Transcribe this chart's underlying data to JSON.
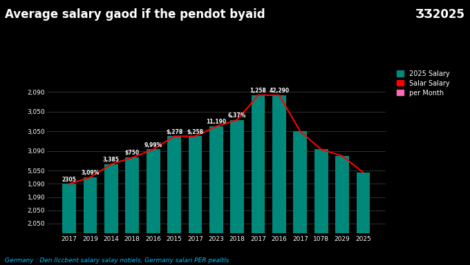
{
  "title_left": "Average salary gaod if the pendot byaid",
  "title_right": "ƷƷ2025",
  "categories": [
    "2017",
    "2019",
    "2014",
    "2018",
    "2016",
    "2015",
    "2017",
    "2023",
    "2018",
    "2017",
    "2016",
    "2017",
    "1078",
    "2029",
    "2025"
  ],
  "bar_values": [
    1.5,
    1.7,
    2.1,
    2.3,
    2.55,
    2.95,
    2.95,
    3.25,
    3.45,
    4.2,
    4.2,
    3.1,
    2.55,
    2.35,
    1.85
  ],
  "bar_labels": [
    "2305",
    "3,09%",
    "3,385",
    "$750",
    "9,99%",
    "$,278",
    "$,258",
    "11,190",
    "6,37%",
    "1,258",
    "42,290",
    "",
    "",
    "",
    ""
  ],
  "bar_color": "#00897B",
  "line_color": "#FF0000",
  "background_color": "#000000",
  "text_color": "#FFFFFF",
  "grid_color": "#444444",
  "ytick_positions": [
    0.3,
    0.7,
    1.1,
    1.5,
    1.9,
    2.5,
    3.1,
    3.7,
    4.3
  ],
  "ytick_labels": [
    "2,050",
    "2,050",
    "1,090",
    "1,090",
    "5,050",
    "3,090",
    "3,050",
    "3,050",
    "2,090"
  ],
  "ylim_max": 5.0,
  "legend_labels": [
    "2025 Salary",
    "Salar Salary",
    "per Month"
  ],
  "legend_colors": [
    "#00897B",
    "#FF0000",
    "#FF69B4"
  ],
  "footer": "Germany : Den llccbent salary salay notiels, Germany salari PER pealtls"
}
